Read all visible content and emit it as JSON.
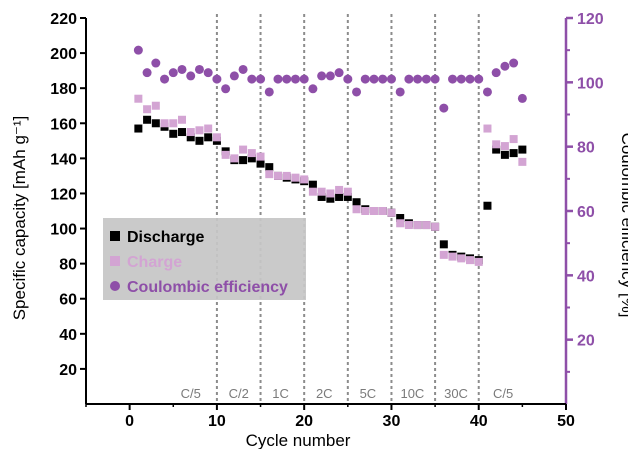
{
  "chart_data": {
    "type": "scatter",
    "xlabel": "Cycle number",
    "ylabel": "Specific capacity [mAh g⁻¹]",
    "y2label": "Coulombic efficiency [%]",
    "xlim": [
      -5,
      50
    ],
    "ylim": [
      0,
      220
    ],
    "y2lim": [
      0,
      120
    ],
    "xticks": [
      0,
      10,
      20,
      30,
      40,
      50
    ],
    "yticks": [
      20,
      40,
      60,
      80,
      100,
      120,
      140,
      160,
      180,
      200,
      220
    ],
    "y2ticks": [
      20,
      40,
      60,
      80,
      100,
      120
    ],
    "grid": false,
    "legend_position": "lower-left",
    "rate_dividers": [
      10,
      15,
      20,
      25,
      30,
      35,
      40
    ],
    "rate_labels": [
      {
        "label": "C/5",
        "x": 7
      },
      {
        "label": "C/2",
        "x": 12.5
      },
      {
        "label": "1C",
        "x": 17.3
      },
      {
        "label": "2C",
        "x": 22.3
      },
      {
        "label": "5C",
        "x": 27.3
      },
      {
        "label": "10C",
        "x": 32.4
      },
      {
        "label": "30C",
        "x": 37.4
      },
      {
        "label": "C/5",
        "x": 42.8
      }
    ],
    "series": [
      {
        "name": "Discharge",
        "axis": "left",
        "marker": "square",
        "color": "#000000",
        "x": [
          1,
          2,
          3,
          4,
          5,
          6,
          7,
          8,
          9,
          10,
          11,
          12,
          13,
          14,
          15,
          16,
          17,
          18,
          19,
          20,
          21,
          22,
          23,
          24,
          25,
          26,
          27,
          28,
          29,
          30,
          31,
          32,
          33,
          34,
          35,
          36,
          37,
          38,
          39,
          40,
          41,
          42,
          43,
          44,
          45
        ],
        "y": [
          157,
          162,
          160,
          158,
          154,
          155,
          152,
          150,
          152,
          150,
          144,
          139,
          139,
          140,
          137,
          135,
          130,
          129,
          128,
          127,
          125,
          118,
          117,
          118,
          118,
          115,
          111,
          110,
          110,
          109,
          106,
          103,
          102,
          102,
          101,
          91,
          85,
          84,
          83,
          82,
          113,
          145,
          142,
          143,
          145
        ]
      },
      {
        "name": "Charge",
        "axis": "left",
        "marker": "square",
        "color": "#d3a4d3",
        "x": [
          1,
          2,
          3,
          4,
          5,
          6,
          7,
          8,
          9,
          10,
          11,
          12,
          13,
          14,
          15,
          16,
          17,
          18,
          19,
          20,
          21,
          22,
          23,
          24,
          25,
          26,
          27,
          28,
          29,
          30,
          31,
          32,
          33,
          34,
          35,
          36,
          37,
          38,
          39,
          40,
          41,
          42,
          43,
          44,
          45
        ],
        "y": [
          174,
          168,
          170,
          160,
          160,
          162,
          155,
          156,
          157,
          152,
          142,
          140,
          145,
          143,
          141,
          131,
          130,
          130,
          129,
          128,
          121,
          121,
          120,
          122,
          121,
          111,
          110,
          110,
          110,
          109,
          103,
          102,
          102,
          102,
          101,
          85,
          84,
          83,
          82,
          81,
          157,
          148,
          147,
          151,
          138
        ]
      },
      {
        "name": "Coulombic efficiency",
        "axis": "right",
        "marker": "circle",
        "color": "#8e4fa8",
        "x": [
          1,
          2,
          3,
          4,
          5,
          6,
          7,
          8,
          9,
          10,
          11,
          12,
          13,
          14,
          15,
          16,
          17,
          18,
          19,
          20,
          21,
          22,
          23,
          24,
          25,
          26,
          27,
          28,
          29,
          30,
          31,
          32,
          33,
          34,
          35,
          36,
          37,
          38,
          39,
          40,
          41,
          42,
          43,
          44,
          45
        ],
        "y": [
          110,
          103,
          106,
          101,
          103,
          104,
          102,
          104,
          103,
          101,
          98,
          102,
          104,
          101,
          101,
          97,
          101,
          101,
          101,
          101,
          98,
          102,
          102,
          103,
          101,
          97,
          101,
          101,
          101,
          101,
          97,
          101,
          101,
          101,
          101,
          92,
          101,
          101,
          101,
          101,
          97,
          103,
          105,
          106,
          95
        ]
      }
    ]
  }
}
